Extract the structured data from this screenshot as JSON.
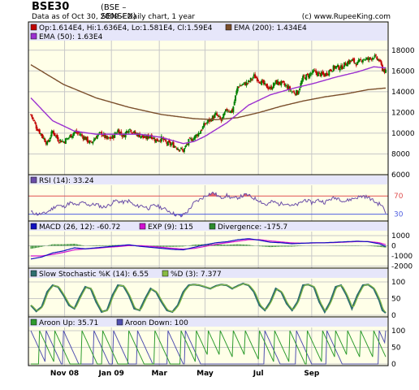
{
  "header": {
    "symbol": "BSE30",
    "name": "(BSE – SENSEX) BSE",
    "as_of": "Data as of Oct 30, 2009 – Daily chart, 1 year",
    "copyright": "(c) www.RupeeKing.com"
  },
  "colors": {
    "panel_bg": "#FFFFE8",
    "frame": "#000000",
    "grid": "#C8C8C8",
    "legend_bar": "#E6E6FA",
    "up_candle": "#008000",
    "down_candle": "#C00000",
    "ema50": "#9B30D0",
    "ema200": "#7A4E2B",
    "rsi_line": "#6A4DA8",
    "rsi_over": "#E06070",
    "rsi_under": "#6A70E0",
    "rsi_70_line": "#E05050",
    "rsi_30_line": "#5060E0",
    "macd_line": "#1010C0",
    "exp_line": "#D010D0",
    "divergence_bar": "#2E8B2E",
    "stoch_k": "#2F6F6F",
    "stoch_d": "#88BB44",
    "aroon_up": "#2E9B2E",
    "aroon_down": "#5050B0"
  },
  "chart_data": [
    {
      "type": "candlestick",
      "panel": "price",
      "x_ticks": [
        "Nov 08",
        "Jan 09",
        "Mar",
        "May",
        "Jul",
        "Sep"
      ],
      "y_ticks": [
        6000,
        8000,
        10000,
        12000,
        14000,
        16000,
        18000
      ],
      "ylim": [
        6000,
        19000
      ],
      "grid": true,
      "legend": [
        {
          "label": "Op:1.614E4, Hi:1.636E4, Lo:1.581E4, Cl:1.59E4",
          "color": "#C00000"
        },
        {
          "label": "EMA (200): 1.434E4",
          "color": "#7A4E2B"
        },
        {
          "label": "EMA (50): 1.63E4",
          "color": "#9B30D0"
        }
      ],
      "close_anchors": [
        [
          0,
          11800
        ],
        [
          5,
          10600
        ],
        [
          10,
          9800
        ],
        [
          15,
          9000
        ],
        [
          20,
          10200
        ],
        [
          25,
          9400
        ],
        [
          30,
          9200
        ],
        [
          35,
          9600
        ],
        [
          40,
          10100
        ],
        [
          45,
          9900
        ],
        [
          50,
          9500
        ],
        [
          55,
          9000
        ],
        [
          60,
          9700
        ],
        [
          65,
          10000
        ],
        [
          70,
          9400
        ],
        [
          75,
          9600
        ],
        [
          80,
          10300
        ],
        [
          85,
          9700
        ],
        [
          90,
          10500
        ],
        [
          95,
          10000
        ],
        [
          100,
          9800
        ],
        [
          105,
          9500
        ],
        [
          110,
          9800
        ],
        [
          115,
          9300
        ],
        [
          120,
          9500
        ],
        [
          125,
          9000
        ],
        [
          130,
          8900
        ],
        [
          135,
          8600
        ],
        [
          140,
          8300
        ],
        [
          145,
          9200
        ],
        [
          150,
          9600
        ],
        [
          155,
          10100
        ],
        [
          160,
          10900
        ],
        [
          165,
          11300
        ],
        [
          170,
          11800
        ],
        [
          175,
          11200
        ],
        [
          180,
          12300
        ],
        [
          185,
          12100
        ],
        [
          190,
          14500
        ],
        [
          195,
          14700
        ],
        [
          200,
          14900
        ],
        [
          205,
          15500
        ],
        [
          210,
          15100
        ],
        [
          215,
          14600
        ],
        [
          220,
          14300
        ],
        [
          225,
          14900
        ],
        [
          230,
          14800
        ],
        [
          235,
          14500
        ],
        [
          240,
          14000
        ],
        [
          245,
          13900
        ],
        [
          250,
          15300
        ],
        [
          255,
          15600
        ],
        [
          260,
          15900
        ],
        [
          265,
          15700
        ],
        [
          270,
          15600
        ],
        [
          275,
          16100
        ],
        [
          280,
          16400
        ],
        [
          285,
          16300
        ],
        [
          290,
          16800
        ],
        [
          295,
          17000
        ],
        [
          300,
          16700
        ],
        [
          305,
          17200
        ],
        [
          310,
          17100
        ],
        [
          315,
          17400
        ],
        [
          320,
          17000
        ],
        [
          323,
          16200
        ],
        [
          326,
          15900
        ]
      ],
      "ema50_anchors": [
        [
          0,
          13400
        ],
        [
          20,
          11200
        ],
        [
          40,
          10200
        ],
        [
          60,
          9900
        ],
        [
          80,
          9900
        ],
        [
          100,
          9900
        ],
        [
          120,
          9600
        ],
        [
          140,
          9000
        ],
        [
          150,
          9200
        ],
        [
          160,
          9700
        ],
        [
          180,
          11000
        ],
        [
          200,
          12700
        ],
        [
          220,
          13700
        ],
        [
          240,
          14300
        ],
        [
          260,
          14800
        ],
        [
          280,
          15400
        ],
        [
          300,
          15900
        ],
        [
          315,
          16400
        ],
        [
          326,
          16300
        ]
      ],
      "ema200_anchors": [
        [
          0,
          16600
        ],
        [
          30,
          14700
        ],
        [
          60,
          13400
        ],
        [
          90,
          12500
        ],
        [
          120,
          11800
        ],
        [
          150,
          11400
        ],
        [
          170,
          11300
        ],
        [
          190,
          11500
        ],
        [
          210,
          12000
        ],
        [
          230,
          12600
        ],
        [
          250,
          13100
        ],
        [
          270,
          13500
        ],
        [
          290,
          13800
        ],
        [
          310,
          14200
        ],
        [
          326,
          14350
        ]
      ]
    },
    {
      "type": "line",
      "panel": "rsi",
      "legend": [
        {
          "label": "RSI (14): 33.24",
          "color": "#6A4DA8"
        }
      ],
      "y_ticks": [
        30,
        70
      ],
      "ylim": [
        15,
        90
      ],
      "anchors": [
        [
          0,
          35
        ],
        [
          6,
          30
        ],
        [
          12,
          31
        ],
        [
          18,
          39
        ],
        [
          24,
          50
        ],
        [
          30,
          46
        ],
        [
          36,
          55
        ],
        [
          42,
          49
        ],
        [
          48,
          56
        ],
        [
          54,
          50
        ],
        [
          60,
          52
        ],
        [
          66,
          45
        ],
        [
          72,
          50
        ],
        [
          78,
          60
        ],
        [
          84,
          56
        ],
        [
          90,
          59
        ],
        [
          96,
          47
        ],
        [
          102,
          49
        ],
        [
          108,
          43
        ],
        [
          114,
          50
        ],
        [
          120,
          44
        ],
        [
          126,
          38
        ],
        [
          132,
          30
        ],
        [
          138,
          25
        ],
        [
          144,
          36
        ],
        [
          150,
          55
        ],
        [
          156,
          63
        ],
        [
          162,
          73
        ],
        [
          168,
          77
        ],
        [
          174,
          66
        ],
        [
          180,
          71
        ],
        [
          186,
          64
        ],
        [
          192,
          68
        ],
        [
          198,
          73
        ],
        [
          204,
          66
        ],
        [
          210,
          60
        ],
        [
          216,
          50
        ],
        [
          222,
          58
        ],
        [
          228,
          52
        ],
        [
          234,
          55
        ],
        [
          240,
          48
        ],
        [
          246,
          52
        ],
        [
          252,
          62
        ],
        [
          258,
          55
        ],
        [
          264,
          61
        ],
        [
          270,
          56
        ],
        [
          276,
          64
        ],
        [
          282,
          66
        ],
        [
          288,
          58
        ],
        [
          294,
          63
        ],
        [
          300,
          67
        ],
        [
          306,
          70
        ],
        [
          312,
          64
        ],
        [
          318,
          54
        ],
        [
          322,
          51
        ],
        [
          326,
          33
        ]
      ]
    },
    {
      "type": "line+bar",
      "panel": "macd",
      "legend": [
        {
          "label": "MACD (26, 12): -60.72",
          "color": "#1010C0"
        },
        {
          "label": "EXP (9): 115",
          "color": "#D010D0"
        },
        {
          "label": "Divergence: -175.7",
          "color": "#2E8B2E"
        }
      ],
      "y_ticks": [
        1000,
        0,
        -1000,
        -2000
      ],
      "ylim": [
        -2200,
        1400
      ],
      "macd_anchors": [
        [
          0,
          -1300
        ],
        [
          10,
          -1100
        ],
        [
          20,
          -700
        ],
        [
          30,
          -500
        ],
        [
          40,
          -200
        ],
        [
          50,
          -300
        ],
        [
          60,
          -200
        ],
        [
          70,
          -100
        ],
        [
          80,
          0
        ],
        [
          90,
          100
        ],
        [
          100,
          -50
        ],
        [
          110,
          -150
        ],
        [
          120,
          -250
        ],
        [
          130,
          -350
        ],
        [
          140,
          -400
        ],
        [
          150,
          -150
        ],
        [
          160,
          100
        ],
        [
          170,
          300
        ],
        [
          180,
          400
        ],
        [
          190,
          600
        ],
        [
          200,
          700
        ],
        [
          210,
          550
        ],
        [
          220,
          350
        ],
        [
          230,
          300
        ],
        [
          240,
          200
        ],
        [
          250,
          250
        ],
        [
          260,
          300
        ],
        [
          270,
          300
        ],
        [
          280,
          350
        ],
        [
          290,
          400
        ],
        [
          300,
          450
        ],
        [
          310,
          400
        ],
        [
          320,
          200
        ],
        [
          326,
          -61
        ]
      ],
      "exp_anchors": [
        [
          0,
          -1000
        ],
        [
          10,
          -1000
        ],
        [
          20,
          -850
        ],
        [
          30,
          -650
        ],
        [
          40,
          -400
        ],
        [
          50,
          -300
        ],
        [
          60,
          -250
        ],
        [
          70,
          -150
        ],
        [
          80,
          -80
        ],
        [
          90,
          20
        ],
        [
          100,
          20
        ],
        [
          110,
          -60
        ],
        [
          120,
          -150
        ],
        [
          130,
          -250
        ],
        [
          140,
          -330
        ],
        [
          150,
          -260
        ],
        [
          160,
          -60
        ],
        [
          170,
          150
        ],
        [
          180,
          300
        ],
        [
          190,
          450
        ],
        [
          200,
          600
        ],
        [
          210,
          600
        ],
        [
          220,
          480
        ],
        [
          230,
          380
        ],
        [
          240,
          280
        ],
        [
          250,
          260
        ],
        [
          260,
          280
        ],
        [
          270,
          300
        ],
        [
          280,
          320
        ],
        [
          290,
          370
        ],
        [
          300,
          420
        ],
        [
          310,
          420
        ],
        [
          320,
          300
        ],
        [
          326,
          115
        ]
      ]
    },
    {
      "type": "line",
      "panel": "stochastic",
      "legend": [
        {
          "label": "Slow Stochastic %K (14): 6.55",
          "color": "#2F6F6F"
        },
        {
          "label": "%D (3): 7.377",
          "color": "#88BB44"
        }
      ],
      "y_ticks": [
        100,
        50,
        0
      ],
      "ylim": [
        0,
        100
      ],
      "k_anchors": [
        [
          0,
          30
        ],
        [
          5,
          12
        ],
        [
          10,
          25
        ],
        [
          15,
          70
        ],
        [
          20,
          90
        ],
        [
          25,
          85
        ],
        [
          30,
          60
        ],
        [
          35,
          30
        ],
        [
          40,
          20
        ],
        [
          45,
          55
        ],
        [
          50,
          85
        ],
        [
          55,
          80
        ],
        [
          60,
          40
        ],
        [
          65,
          10
        ],
        [
          70,
          15
        ],
        [
          75,
          60
        ],
        [
          80,
          90
        ],
        [
          85,
          88
        ],
        [
          90,
          60
        ],
        [
          95,
          20
        ],
        [
          100,
          15
        ],
        [
          105,
          50
        ],
        [
          110,
          80
        ],
        [
          115,
          70
        ],
        [
          120,
          40
        ],
        [
          125,
          15
        ],
        [
          130,
          10
        ],
        [
          135,
          30
        ],
        [
          140,
          70
        ],
        [
          145,
          90
        ],
        [
          150,
          92
        ],
        [
          155,
          90
        ],
        [
          160,
          85
        ],
        [
          165,
          80
        ],
        [
          170,
          88
        ],
        [
          175,
          92
        ],
        [
          180,
          90
        ],
        [
          185,
          80
        ],
        [
          190,
          88
        ],
        [
          195,
          95
        ],
        [
          200,
          90
        ],
        [
          205,
          70
        ],
        [
          210,
          30
        ],
        [
          215,
          15
        ],
        [
          220,
          40
        ],
        [
          225,
          80
        ],
        [
          230,
          70
        ],
        [
          235,
          35
        ],
        [
          240,
          15
        ],
        [
          245,
          40
        ],
        [
          250,
          90
        ],
        [
          255,
          92
        ],
        [
          260,
          85
        ],
        [
          265,
          40
        ],
        [
          270,
          10
        ],
        [
          275,
          40
        ],
        [
          280,
          85
        ],
        [
          285,
          90
        ],
        [
          290,
          60
        ],
        [
          295,
          20
        ],
        [
          300,
          60
        ],
        [
          305,
          90
        ],
        [
          310,
          92
        ],
        [
          315,
          80
        ],
        [
          320,
          45
        ],
        [
          323,
          15
        ],
        [
          326,
          7
        ]
      ]
    },
    {
      "type": "line",
      "panel": "aroon",
      "legend": [
        {
          "label": "Aroon Up: 35.71",
          "color": "#2E9B2E"
        },
        {
          "label": "Aroon Down: 100",
          "color": "#5050B0"
        }
      ],
      "y_ticks": [
        100,
        50,
        0
      ],
      "ylim": [
        0,
        100
      ],
      "up_resets": [
        8,
        22,
        47,
        66,
        90,
        114,
        138,
        152,
        163,
        174,
        186,
        197,
        210,
        224,
        238,
        254,
        268,
        280,
        291,
        303,
        315
      ],
      "down_resets": [
        0,
        14,
        30,
        58,
        76,
        98,
        126,
        142,
        215,
        244,
        272,
        320,
        326
      ]
    }
  ]
}
